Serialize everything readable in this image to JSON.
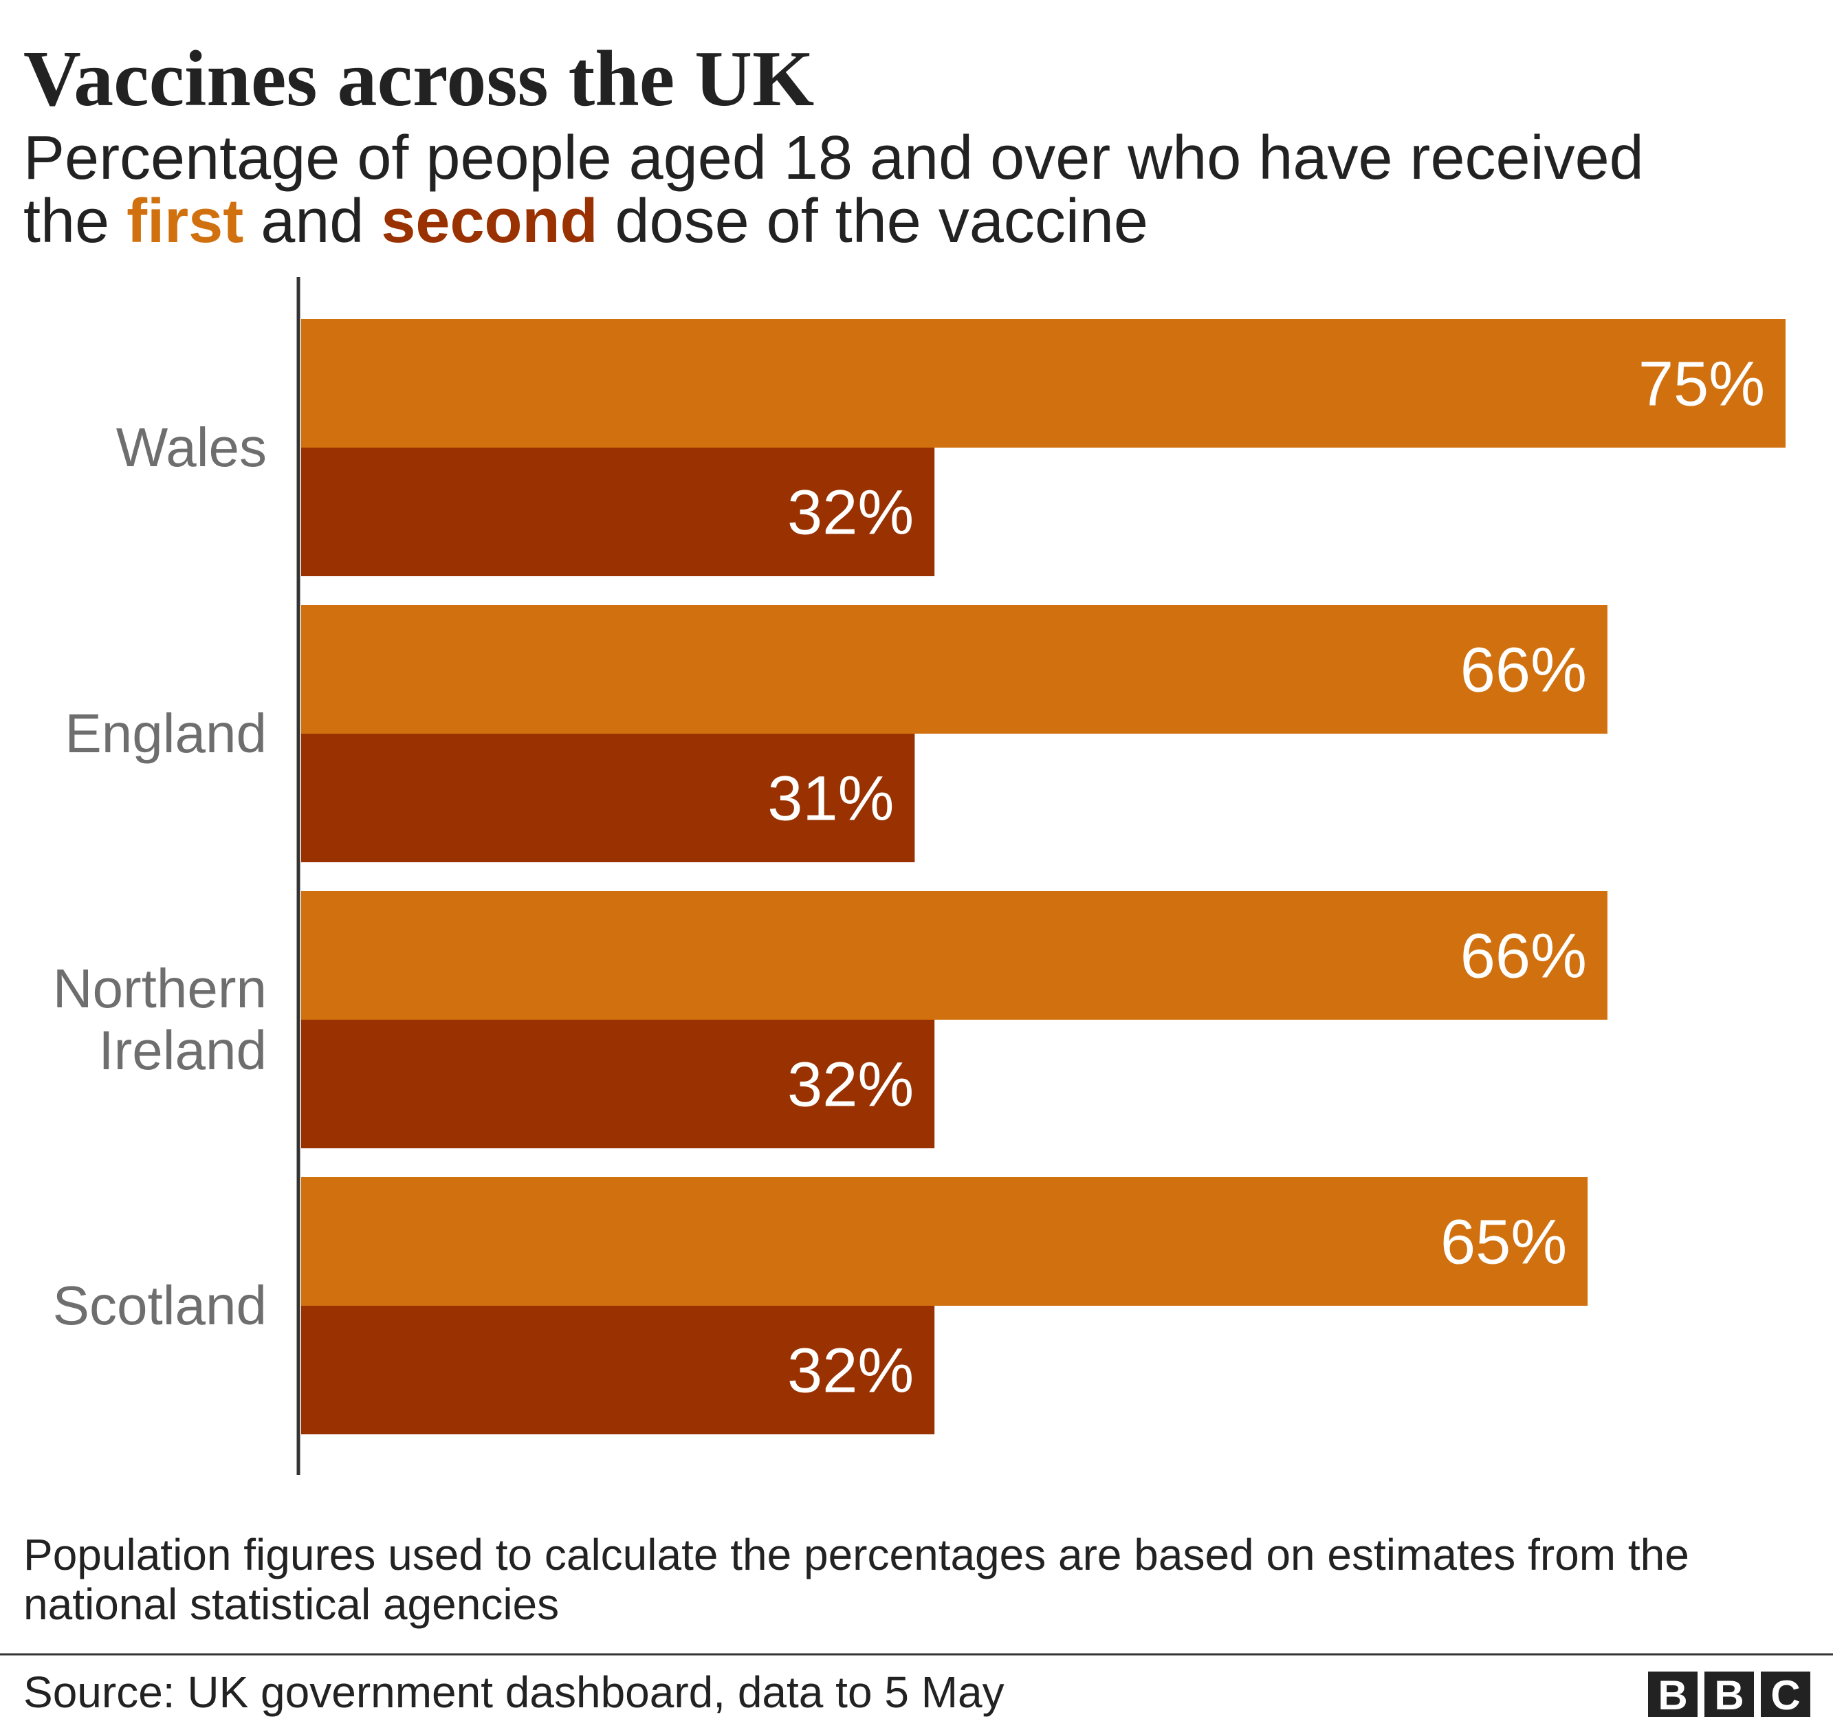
{
  "chart_data": {
    "type": "bar",
    "orientation": "horizontal",
    "title": "Vaccines across the UK",
    "subtitle": [
      "Percentage of people aged 18 and over who have received the",
      "and",
      "dose of the vaccine"
    ],
    "categories": [
      "Wales",
      "England",
      "Northern Ireland",
      "Scotland"
    ],
    "series": [
      {
        "name": "first",
        "color": "#d1700e",
        "values": [
          75,
          66,
          66,
          65
        ],
        "value_labels": [
          "75%",
          "66%",
          "66%",
          "65%"
        ]
      },
      {
        "name": "second",
        "color": "#993100",
        "values": [
          32,
          31,
          32,
          32
        ],
        "value_labels": [
          "32%",
          "31%",
          "32%",
          "32%"
        ]
      }
    ],
    "xlim": [
      0,
      75
    ],
    "note": "Population figures used to calculate the percentages are based on estimates from the national statistical agencies",
    "source": "Source: UK government dashboard, data to 5 May",
    "logo": [
      "B",
      "B",
      "C"
    ]
  }
}
